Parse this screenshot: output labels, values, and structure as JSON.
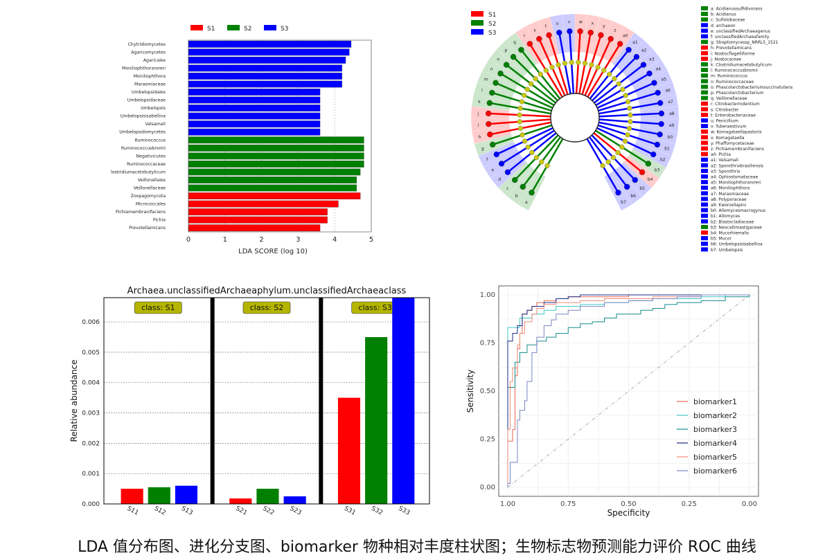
{
  "caption": "LDA 值分布图、进化分支图、biomarker 物种相对丰度柱状图；生物标志物预测能力评价 ROC 曲线",
  "colors": {
    "S1": "#ff0000",
    "S2": "#008000",
    "S3": "#0000ff",
    "node": "#c8c814",
    "classbox": "#b5b500"
  },
  "chart_data": [
    {
      "type": "bar",
      "orientation": "horizontal",
      "legend": [
        "S1",
        "S2",
        "S3"
      ],
      "legend_position": "top",
      "xlabel": "LDA SCORE (log 10)",
      "xlim": [
        0,
        5
      ],
      "xticks": [
        "0",
        "1",
        "2",
        "3",
        "4",
        "5"
      ],
      "categories": [
        "Chytridiomycetes",
        "Agaricomycetes",
        "Agaricales",
        "Moniliophthoraroreri",
        "Moniliophthora",
        "Marasmiaceae",
        "Umbelopsidales",
        "Umbelopsidaceae",
        "Umbelopsis",
        "Umbelopsisisabellina",
        "Valsamali",
        "Umbelopsidomycetes",
        "Ruminococcus",
        "Ruminococcusbromii",
        "Negativicutes",
        "Ruminococcaceae",
        "Clostridiumacetobutylicum",
        "Veillonellales",
        "Veillonellaceae",
        "Zoopagomycota",
        "Micrococcales",
        "Pichiamembranifaciens",
        "Pichia",
        "Prevotellamicans"
      ],
      "values": [
        4.45,
        4.4,
        4.3,
        4.2,
        4.2,
        4.2,
        3.6,
        3.6,
        3.6,
        3.6,
        3.6,
        3.6,
        4.8,
        4.8,
        4.8,
        4.8,
        4.7,
        4.6,
        4.6,
        4.7,
        4.1,
        3.8,
        3.8,
        3.6
      ],
      "groups": [
        "S3",
        "S3",
        "S3",
        "S3",
        "S3",
        "S3",
        "S3",
        "S3",
        "S3",
        "S3",
        "S3",
        "S3",
        "S2",
        "S2",
        "S2",
        "S2",
        "S2",
        "S2",
        "S2",
        "S1",
        "S1",
        "S1",
        "S1",
        "S1"
      ],
      "grid": true
    },
    {
      "type": "cladogram",
      "legend": [
        "S1",
        "S2",
        "S3"
      ],
      "legend_position": "top-left",
      "key": [
        {
          "id": "a",
          "name": "Acidianussulfidivorans",
          "group": "S2"
        },
        {
          "id": "b",
          "name": "Acidianus",
          "group": "S2"
        },
        {
          "id": "c",
          "name": "Sulfolobaceae",
          "group": "S2"
        },
        {
          "id": "d",
          "name": "archaeon",
          "group": "S3"
        },
        {
          "id": "e",
          "name": "unclassifiedArchaeagenus",
          "group": "S3"
        },
        {
          "id": "f",
          "name": "unclassifiedArchaeafamily",
          "group": "S3"
        },
        {
          "id": "g",
          "name": "Streptomycessp_NRRL5_1521",
          "group": "S2"
        },
        {
          "id": "h",
          "name": "Prevotellamicans",
          "group": "S1"
        },
        {
          "id": "i",
          "name": "Nostocflagelliforme",
          "group": "S1"
        },
        {
          "id": "j",
          "name": "Nostocaceae",
          "group": "S1"
        },
        {
          "id": "k",
          "name": "Clostridiumacetobutylicum",
          "group": "S2"
        },
        {
          "id": "l",
          "name": "Ruminococcusbromii",
          "group": "S2"
        },
        {
          "id": "m",
          "name": "Ruminococcus",
          "group": "S2"
        },
        {
          "id": "n",
          "name": "Ruminococcaceae",
          "group": "S2"
        },
        {
          "id": "o",
          "name": "Phascolarctobacteriumsuccinatutens",
          "group": "S2"
        },
        {
          "id": "p",
          "name": "Phascolarctobacterium",
          "group": "S2"
        },
        {
          "id": "q",
          "name": "Veillonellaceae",
          "group": "S2"
        },
        {
          "id": "r",
          "name": "Citrobacterrodentium",
          "group": "S1"
        },
        {
          "id": "s",
          "name": "Citrobacter",
          "group": "S1"
        },
        {
          "id": "t",
          "name": "Enterobacteriaceae",
          "group": "S1"
        },
        {
          "id": "u",
          "name": "Penicillium",
          "group": "S3"
        },
        {
          "id": "v",
          "name": "Tuberaestivum",
          "group": "S3"
        },
        {
          "id": "w",
          "name": "Komagataellapastoris",
          "group": "S1"
        },
        {
          "id": "x",
          "name": "Komagataella",
          "group": "S1"
        },
        {
          "id": "y",
          "name": "Phaffomycetaceae",
          "group": "S1"
        },
        {
          "id": "z",
          "name": "Pichiamembranifaciens",
          "group": "S1"
        },
        {
          "id": "a0",
          "name": "Pichia",
          "group": "S1"
        },
        {
          "id": "a1",
          "name": "Valsamali",
          "group": "S3"
        },
        {
          "id": "a2",
          "name": "Sporothrixbrasiliensis",
          "group": "S3"
        },
        {
          "id": "a3",
          "name": "Sporothrix",
          "group": "S3"
        },
        {
          "id": "a4",
          "name": "Ophiostomataceae",
          "group": "S3"
        },
        {
          "id": "a5",
          "name": "Moniliophthoraroreri",
          "group": "S3"
        },
        {
          "id": "a6",
          "name": "Moniliophthora",
          "group": "S3"
        },
        {
          "id": "a7",
          "name": "Marasmiaceae",
          "group": "S3"
        },
        {
          "id": "a8",
          "name": "Polyporaceae",
          "group": "S3"
        },
        {
          "id": "a9",
          "name": "Kwoniellapini",
          "group": "S3"
        },
        {
          "id": "b0",
          "name": "Allomycesmacrogynus",
          "group": "S3"
        },
        {
          "id": "b1",
          "name": "Allomyces",
          "group": "S3"
        },
        {
          "id": "b2",
          "name": "Blastocladiaceae",
          "group": "S3"
        },
        {
          "id": "b3",
          "name": "Neocallimastigaceae",
          "group": "S2"
        },
        {
          "id": "b4",
          "name": "Mucorhiemalis",
          "group": "S1"
        },
        {
          "id": "b5",
          "name": "Mucor",
          "group": "S3"
        },
        {
          "id": "b6",
          "name": "Umbelopsisisabellina",
          "group": "S3"
        },
        {
          "id": "b7",
          "name": "Umbelopsis",
          "group": "S3"
        }
      ]
    },
    {
      "type": "bar",
      "title": "Archaea.unclassifiedArchaeaphylum.unclassifiedArchaeaclass",
      "ylabel": "Relative abundance",
      "ylim": [
        0,
        0.0068
      ],
      "yticks": [
        "0.000",
        "0.001",
        "0.002",
        "0.003",
        "0.004",
        "0.005",
        "0.006"
      ],
      "grid": true,
      "panels": [
        {
          "label": "class: S1",
          "categories": [
            "S11",
            "S12",
            "S13"
          ],
          "values": [
            0.0005,
            0.00055,
            0.0006
          ],
          "colors": [
            "#ff0000",
            "#008000",
            "#0000ff"
          ]
        },
        {
          "label": "class: S2",
          "categories": [
            "S21",
            "S22",
            "S23"
          ],
          "values": [
            0.00018,
            0.0005,
            0.00025
          ],
          "colors": [
            "#ff0000",
            "#008000",
            "#0000ff"
          ]
        },
        {
          "label": "class: S3",
          "categories": [
            "S31",
            "S32",
            "S33"
          ],
          "values": [
            0.0035,
            0.0055,
            0.0068
          ],
          "colors": [
            "#ff0000",
            "#008000",
            "#0000ff"
          ]
        }
      ]
    },
    {
      "type": "line",
      "xlabel": "Specificity",
      "ylabel": "Sensitivity",
      "xlim": [
        1.0,
        0.0
      ],
      "ylim": [
        0,
        1
      ],
      "xticks": [
        "1.00",
        "0.75",
        "0.50",
        "0.25",
        "0.00"
      ],
      "yticks": [
        "0.00",
        "0.25",
        "0.50",
        "0.75",
        "1.00"
      ],
      "legend_position": "right",
      "grid": true,
      "series": [
        {
          "name": "biomarker1",
          "color": "#e8654f",
          "x": [
            1.0,
            1.0,
            0.98,
            0.97,
            0.96,
            0.95,
            0.94,
            0.92,
            0.9,
            0.88,
            0.85,
            0.82,
            0.8,
            0.75,
            0.7,
            0.6,
            0.5,
            0.4,
            0.3,
            0.2,
            0.1,
            0.0
          ],
          "y": [
            0.0,
            0.24,
            0.3,
            0.58,
            0.72,
            0.8,
            0.9,
            0.92,
            0.94,
            0.96,
            0.97,
            0.97,
            0.98,
            0.99,
            0.99,
            0.99,
            1.0,
            1.0,
            1.0,
            1.0,
            1.0,
            1.0
          ]
        },
        {
          "name": "biomarker2",
          "color": "#3ec6c6",
          "x": [
            1.0,
            1.0,
            0.96,
            0.95,
            0.9,
            0.85,
            0.8,
            0.7,
            0.6,
            0.5,
            0.4,
            0.3,
            0.2,
            0.1,
            0.0
          ],
          "y": [
            0.0,
            0.83,
            0.83,
            0.88,
            0.9,
            0.92,
            0.94,
            0.95,
            0.96,
            0.97,
            0.98,
            0.98,
            0.99,
            1.0,
            1.0
          ]
        },
        {
          "name": "biomarker3",
          "color": "#138a8a",
          "x": [
            1.0,
            1.0,
            0.99,
            0.97,
            0.95,
            0.92,
            0.88,
            0.84,
            0.8,
            0.75,
            0.7,
            0.65,
            0.6,
            0.55,
            0.5,
            0.45,
            0.4,
            0.35,
            0.3,
            0.2,
            0.1,
            0.0
          ],
          "y": [
            0.0,
            0.52,
            0.52,
            0.65,
            0.7,
            0.74,
            0.76,
            0.78,
            0.8,
            0.83,
            0.85,
            0.86,
            0.88,
            0.9,
            0.9,
            0.92,
            0.93,
            0.95,
            0.96,
            0.97,
            0.99,
            1.0
          ]
        },
        {
          "name": "biomarker4",
          "color": "#1a2680",
          "x": [
            1.0,
            1.0,
            0.98,
            0.96,
            0.94,
            0.92,
            0.9,
            0.85,
            0.8,
            0.75,
            0.7,
            0.6,
            0.5,
            0.4,
            0.3,
            0.2,
            0.1,
            0.0
          ],
          "y": [
            0.0,
            0.76,
            0.8,
            0.84,
            0.9,
            0.92,
            0.94,
            0.96,
            0.98,
            0.99,
            1.0,
            1.0,
            1.0,
            1.0,
            1.0,
            1.0,
            1.0,
            1.0
          ]
        },
        {
          "name": "biomarker5",
          "color": "#f08a74",
          "x": [
            1.0,
            1.0,
            0.99,
            0.98,
            0.96,
            0.95,
            0.93,
            0.9,
            0.88,
            0.85,
            0.8,
            0.7,
            0.6,
            0.5,
            0.4,
            0.3,
            0.2,
            0.1,
            0.0
          ],
          "y": [
            0.0,
            0.3,
            0.55,
            0.62,
            0.74,
            0.8,
            0.86,
            0.9,
            0.93,
            0.95,
            0.96,
            0.97,
            0.98,
            0.98,
            0.99,
            0.99,
            1.0,
            1.0,
            1.0
          ]
        },
        {
          "name": "biomarker6",
          "color": "#7a86c6",
          "x": [
            1.0,
            1.0,
            0.99,
            0.96,
            0.95,
            0.93,
            0.92,
            0.9,
            0.88,
            0.85,
            0.82,
            0.8,
            0.75,
            0.7,
            0.6,
            0.5,
            0.4,
            0.3,
            0.2,
            0.1,
            0.0
          ],
          "y": [
            0.0,
            0.02,
            0.13,
            0.35,
            0.4,
            0.45,
            0.55,
            0.7,
            0.78,
            0.84,
            0.87,
            0.9,
            0.92,
            0.94,
            0.96,
            0.97,
            0.98,
            0.99,
            1.0,
            1.0,
            1.0
          ]
        }
      ]
    }
  ]
}
